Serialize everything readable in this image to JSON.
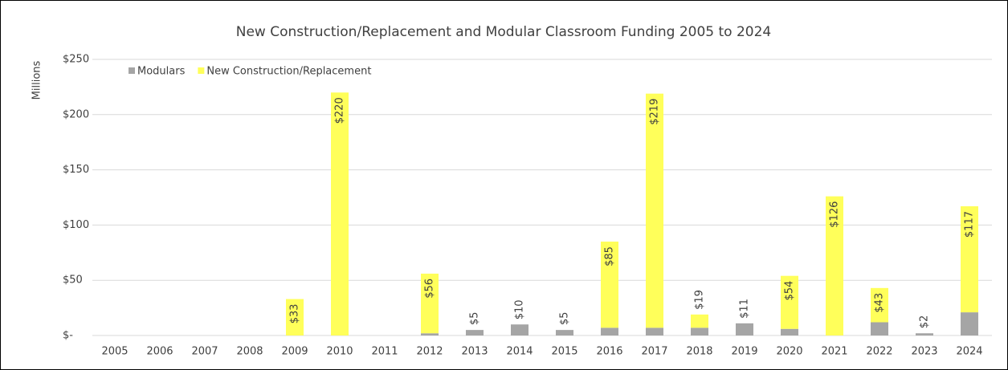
{
  "chart_data": {
    "type": "stacked_bar",
    "title": "New Construction/Replacement and Modular Classroom Funding 2005 to 2024",
    "y_label": "Millions",
    "categories": [
      "2005",
      "2006",
      "2007",
      "2008",
      "2009",
      "2010",
      "2011",
      "2012",
      "2013",
      "2014",
      "2015",
      "2016",
      "2017",
      "2018",
      "2019",
      "2020",
      "2021",
      "2022",
      "2023",
      "2024"
    ],
    "series": [
      {
        "name": "Modulars",
        "color": "#a5a5a5",
        "values": [
          0,
          0,
          0,
          0,
          0,
          0,
          0,
          2,
          5,
          10,
          5,
          7,
          7,
          7,
          11,
          6,
          0,
          12,
          2,
          21
        ]
      },
      {
        "name": "New Construction/Replacement",
        "color": "#ffff5a",
        "values": [
          0,
          0,
          0,
          0,
          33,
          220,
          0,
          54,
          0,
          0,
          0,
          78,
          212,
          12,
          0,
          48,
          126,
          31,
          0,
          96
        ]
      }
    ],
    "totals": [
      null,
      null,
      null,
      null,
      33,
      220,
      null,
      56,
      5,
      10,
      5,
      85,
      219,
      19,
      11,
      54,
      126,
      43,
      2,
      117
    ],
    "total_labels": [
      null,
      null,
      null,
      null,
      "$33",
      "$220",
      null,
      "$56",
      "$5",
      "$10",
      "$5",
      "$85",
      "$219",
      "$19",
      "$11",
      "$54",
      "$126",
      "$43",
      "$2",
      "$117"
    ],
    "ylim": [
      0,
      250
    ],
    "yticks": [
      {
        "value": 0,
        "label": "$-"
      },
      {
        "value": 50,
        "label": "$50"
      },
      {
        "value": 100,
        "label": "$100"
      },
      {
        "value": 150,
        "label": "$150"
      },
      {
        "value": 200,
        "label": "$200"
      },
      {
        "value": 250,
        "label": "$250"
      }
    ],
    "grid": true,
    "legend": "top-left"
  }
}
